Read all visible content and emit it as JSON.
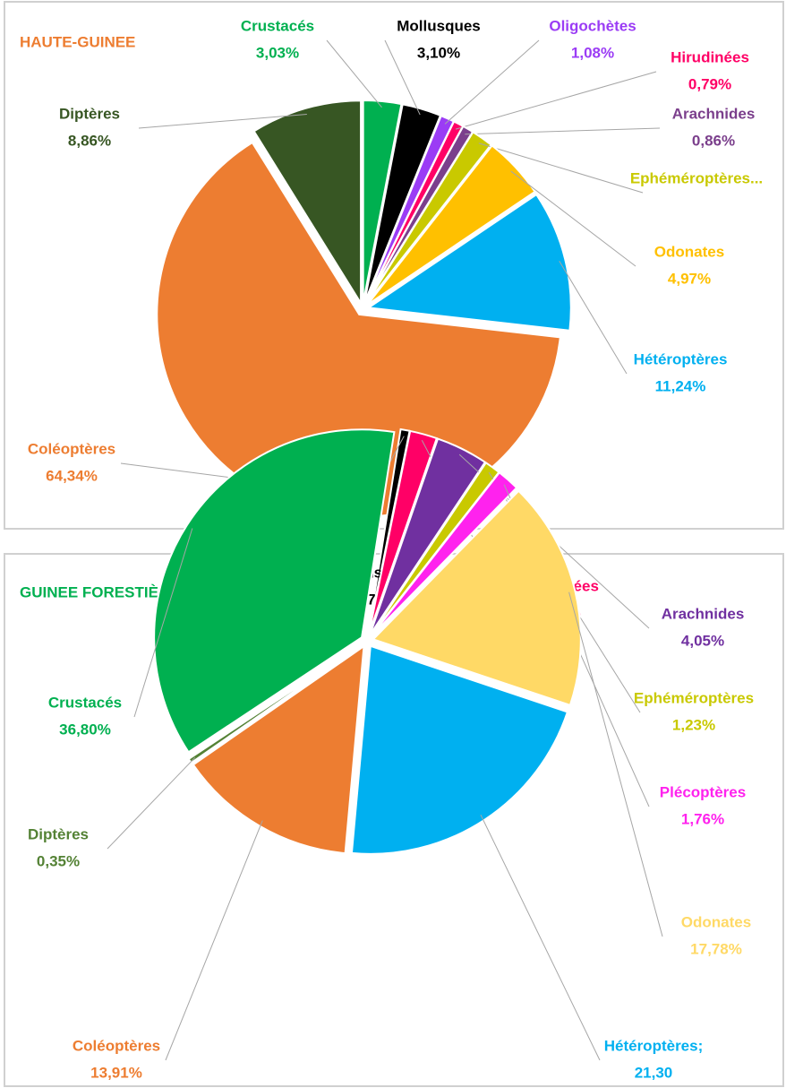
{
  "chart_data": [
    {
      "type": "pie",
      "title": "HAUTE-GUINEE",
      "title_color": "#ed7d31",
      "categories": [
        "Crustacés",
        "Mollusques",
        "Oligochètes",
        "Hirudinées",
        "Arachnides",
        "Ephéméroptères...",
        "Odonates",
        "Hétéroptères",
        "Coléoptères",
        "Diptères"
      ],
      "values": [
        3.03,
        3.1,
        1.08,
        0.79,
        0.86,
        1.73,
        4.97,
        11.24,
        64.34,
        8.86
      ],
      "value_labels": [
        "3,03%",
        "3,10%",
        "1,08%",
        "0,79%",
        "0,86%",
        null,
        "4,97%",
        "11,24%",
        "64,34%",
        "8,86%"
      ],
      "colors": [
        "#00b050",
        "#000000",
        "#9b3cf5",
        "#ff0066",
        "#7b3f8c",
        "#c9c900",
        "#ffc000",
        "#00b0f0",
        "#ed7d31",
        "#375623"
      ]
    },
    {
      "type": "pie",
      "title": "GUINEE FORESTIÈRE",
      "title_color": "#00b050",
      "categories": [
        "Mollusques",
        "Hirudinées",
        "Arachnides",
        "Ephéméroptères",
        "Plécoptères",
        "Odonates",
        "Hétéroptères;",
        "Coléoptères",
        "Diptères",
        "Crustacés"
      ],
      "values": [
        0.7,
        2.11,
        4.05,
        1.23,
        1.76,
        17.78,
        21.3,
        13.91,
        0.35,
        36.8
      ],
      "value_labels": [
        "0,70%",
        "2,11%",
        "4,05%",
        "1,23%",
        "1,76%",
        "17,78%",
        "21,30",
        "13,91%",
        "0,35%",
        "36,80%"
      ],
      "colors": [
        "#000000",
        "#ff0066",
        "#7030a0",
        "#c9c900",
        "#ff22ee",
        "#ffd966",
        "#00b0f0",
        "#ed7d31",
        "#548235",
        "#00b050"
      ]
    }
  ]
}
